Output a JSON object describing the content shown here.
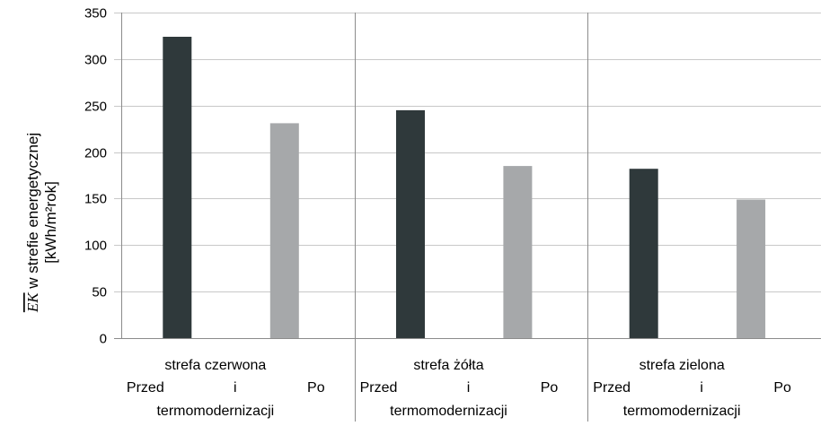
{
  "chart_data": {
    "type": "bar",
    "ylabel_symbol": "EK",
    "ylabel_line1": " w strefie energetycznej",
    "ylabel_line2": "[kWh/m²rok]",
    "ylim": [
      0,
      350
    ],
    "yticks": [
      0,
      50,
      100,
      150,
      200,
      250,
      300,
      350
    ],
    "grid": "horizontal",
    "categories": [
      {
        "name": "strefa czerwona",
        "sub": [
          "Przed",
          "i",
          "Po"
        ],
        "note": "termomodernizacji"
      },
      {
        "name": "strefa żółta",
        "sub": [
          "Przed",
          "i",
          "Po"
        ],
        "note": "termomodernizacji"
      },
      {
        "name": "strefa zielona",
        "sub": [
          "Przed",
          "i",
          "Po"
        ],
        "note": "termomodernizacji"
      }
    ],
    "series": [
      {
        "values": [
          324,
          245,
          182
        ],
        "color": "#2f393b"
      },
      {
        "values": [
          231,
          185,
          149
        ],
        "color": "#a6a8aa"
      }
    ]
  }
}
